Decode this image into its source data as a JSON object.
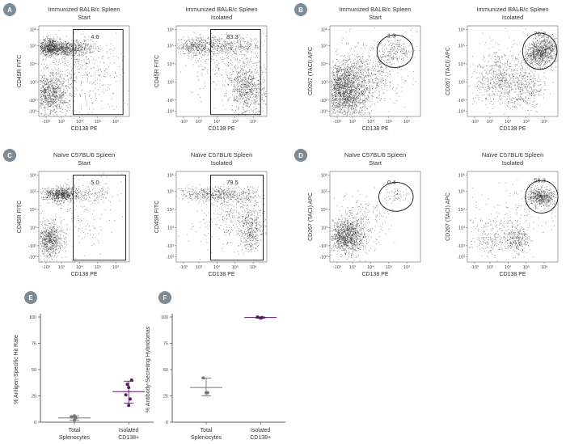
{
  "colors": {
    "badge": "#7a8a96",
    "purple": "#5a1a6a",
    "grey_point": "#777777",
    "dots": "#222222"
  },
  "flow_tick_labels": {
    "x": [
      "-10³",
      "10³",
      "10⁴",
      "10⁵",
      "10⁶"
    ],
    "y": [
      "10⁶",
      "10⁵",
      "10⁴",
      "10³",
      "-10²",
      "-10³"
    ]
  },
  "panels": [
    {
      "id": "A",
      "title1": "Immunized BALB/c Spleen",
      "title2": "Start",
      "xlabel": "CD138 PE",
      "ylabel": "CD45R FITC",
      "gate_value": "4.6"
    },
    {
      "id": "",
      "title1": "Immunized BALB/c Spleen",
      "title2": "Isolated",
      "xlabel": "CD138 PE",
      "ylabel": "CD45R FITC",
      "gate_value": "83.3"
    },
    {
      "id": "B",
      "title1": "Immunized BALB/c Spleen",
      "title2": "Start",
      "xlabel": "CD138 PE",
      "ylabel": "CD267 (TACI) APC",
      "gate_value": "1.3"
    },
    {
      "id": "",
      "title1": "Immunized BALB/c Spleen",
      "title2": "Isolated",
      "xlabel": "CD138 PE",
      "ylabel": "CD267 (TACI) APC",
      "gate_value": "70.2"
    },
    {
      "id": "C",
      "title1": "Naïve C57BL/6 Spleen",
      "title2": "Start",
      "xlabel": "CD138 PE",
      "ylabel": "CD45R FITC",
      "gate_value": "5.0"
    },
    {
      "id": "",
      "title1": "Naïve C57BL/6 Spleen",
      "title2": "Isolated",
      "xlabel": "CD138 PE",
      "ylabel": "CD45R FITC",
      "gate_value": "79.5"
    },
    {
      "id": "D",
      "title1": "Naïve C57BL/6 Spleen",
      "title2": "Start",
      "xlabel": "CD138 PE",
      "ylabel": "CD267 (TACI) APC",
      "gate_value": "0.4"
    },
    {
      "id": "",
      "title1": "Naïve C57BL/6 Spleen",
      "title2": "Isolated",
      "xlabel": "CD138 PE",
      "ylabel": "CD267 (TACI) APC",
      "gate_value": "56.3"
    }
  ],
  "chart_data": [
    {
      "id": "E",
      "type": "scatter",
      "ylabel": "% Antigen-Specific Hit Rate",
      "categories": [
        "Total\nSplenocytes",
        "Isolated\nCD138+"
      ],
      "ylim": [
        0,
        100
      ],
      "yticks": [
        "0",
        "25",
        "50",
        "75",
        "100"
      ],
      "groups": [
        {
          "category": "Total\nSplenocytes",
          "points": [
            2,
            4,
            5,
            6
          ],
          "mean": 4,
          "err": [
            2,
            6
          ],
          "color": "#777777"
        },
        {
          "category": "Isolated\nCD138+",
          "points": [
            16,
            22,
            26,
            33,
            36,
            40
          ],
          "mean": 29,
          "err": [
            18,
            39
          ],
          "color": "#5a1a6a"
        }
      ]
    },
    {
      "id": "F",
      "type": "scatter",
      "ylabel": "% Antibody-Secreting Hybridomas",
      "categories": [
        "Total\nSplenocytes",
        "Isolated\nCD138+"
      ],
      "ylim": [
        0,
        100
      ],
      "yticks": [
        "0",
        "25",
        "50",
        "75",
        "100"
      ],
      "groups": [
        {
          "category": "Total\nSplenocytes",
          "points": [
            28,
            28,
            42
          ],
          "mean": 33,
          "err": [
            25,
            42
          ],
          "color": "#777777"
        },
        {
          "category": "Isolated\nCD138+",
          "points": [
            99,
            99.5,
            100
          ],
          "mean": 99.5,
          "err": [
            99,
            100
          ],
          "color": "#5a1a6a"
        }
      ]
    }
  ]
}
